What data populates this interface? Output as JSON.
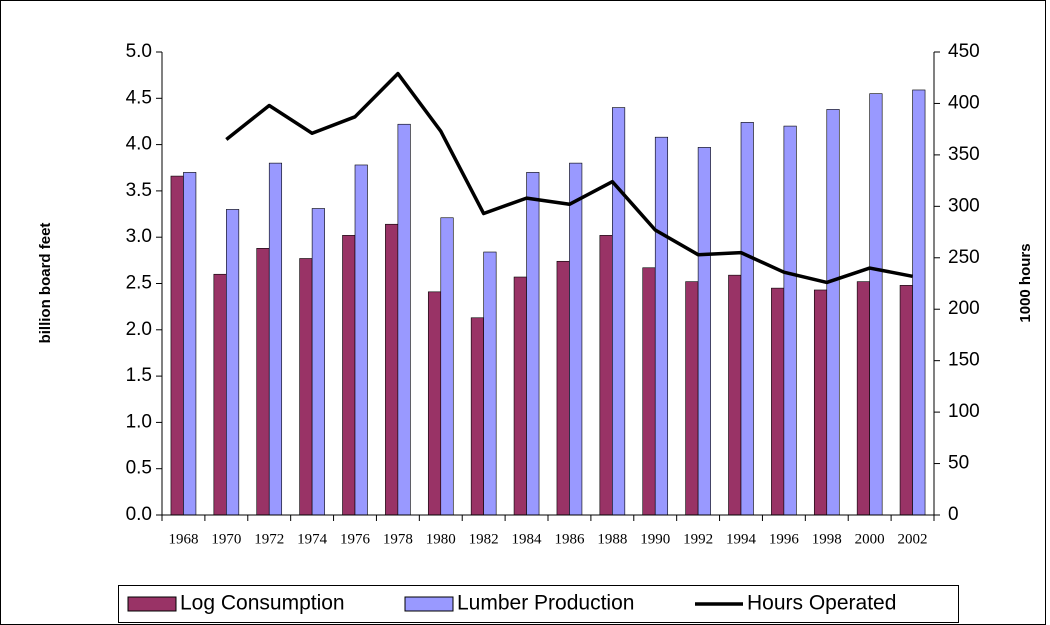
{
  "chart_data": {
    "type": "bar_line",
    "y_label": "billion board feet",
    "y2_label": "1000 hours",
    "categories": [
      "1968",
      "1970",
      "1972",
      "1974",
      "1976",
      "1978",
      "1980",
      "1982",
      "1984",
      "1986",
      "1988",
      "1990",
      "1992",
      "1994",
      "1996",
      "1998",
      "2000",
      "2002"
    ],
    "series": [
      {
        "name": "Log Consumption",
        "type": "bar",
        "color": "#993366",
        "values": [
          3.66,
          2.6,
          2.88,
          2.77,
          3.02,
          3.14,
          2.41,
          2.13,
          2.57,
          2.74,
          3.02,
          2.67,
          2.52,
          2.59,
          2.45,
          2.43,
          2.52,
          2.48
        ]
      },
      {
        "name": "Lumber Production",
        "type": "bar",
        "color": "#9999ff",
        "values": [
          3.7,
          3.3,
          3.8,
          3.31,
          3.78,
          4.22,
          3.21,
          2.84,
          3.7,
          3.8,
          4.4,
          4.08,
          3.97,
          4.24,
          4.2,
          4.38,
          4.55,
          4.59
        ]
      },
      {
        "name": "Hours Operated",
        "type": "line",
        "color": "#000000",
        "axis": "y2",
        "values": [
          null,
          365,
          398,
          371,
          387,
          429,
          373,
          293,
          308,
          302,
          324,
          277,
          253,
          255,
          236,
          226,
          240,
          232
        ]
      }
    ],
    "ylim": [
      0,
      5
    ],
    "yticks": [
      {
        "value": 0,
        "label": "0.0"
      },
      {
        "value": 0.5,
        "label": "0.5"
      },
      {
        "value": 1,
        "label": "1.0"
      },
      {
        "value": 1.5,
        "label": "1.5"
      },
      {
        "value": 2,
        "label": "2.0"
      },
      {
        "value": 2.5,
        "label": "2.5"
      },
      {
        "value": 3,
        "label": "3.0"
      },
      {
        "value": 3.5,
        "label": "3.5"
      },
      {
        "value": 4,
        "label": "4.0"
      },
      {
        "value": 4.5,
        "label": "4.5"
      },
      {
        "value": 5,
        "label": "5.0"
      }
    ],
    "y2lim": [
      0,
      450
    ],
    "y2ticks": [
      0,
      50,
      100,
      150,
      200,
      250,
      300,
      350,
      400,
      450
    ],
    "grid": false,
    "legend": "bottom"
  }
}
